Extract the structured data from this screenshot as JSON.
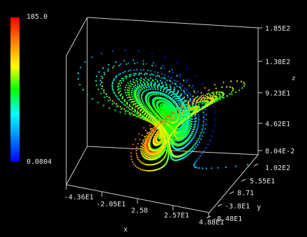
{
  "colorbar": {
    "max_label": "185.0",
    "min_label": "0.0804",
    "stops": [
      "#ff0000",
      "#ff8000",
      "#ffff00",
      "#00ff00",
      "#00ffff",
      "#0080ff",
      "#0000ff"
    ]
  },
  "chart_data": {
    "type": "scatter",
    "projection": "3d",
    "attractor": "lorenz",
    "title": "",
    "axes": {
      "x": {
        "label": "x",
        "ticks": [
          "-4.36E1",
          "-2.05E1",
          "2.58",
          "2.57E1",
          "4.88E1"
        ]
      },
      "y": {
        "label": "y",
        "ticks": [
          "1.02E2",
          "5.55E1",
          "8.71",
          "-3.8E1",
          "-8.48E1"
        ]
      },
      "z": {
        "label": "z",
        "ticks": [
          "1.85E2",
          "1.38E2",
          "9.23E1",
          "4.62E1",
          "8.04E-2"
        ]
      }
    },
    "color_scale": {
      "min": 0.0804,
      "max": 185.0
    },
    "grid": false,
    "legend": "colorbar-left"
  }
}
